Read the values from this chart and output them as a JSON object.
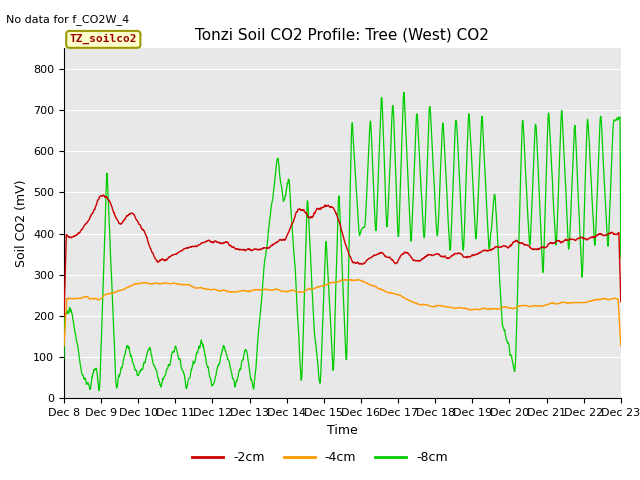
{
  "title": "Tonzi Soil CO2 Profile: Tree (West) CO2",
  "subtitle": "No data for f_CO2W_4",
  "ylabel": "Soil CO2 (mV)",
  "xlabel": "Time",
  "xlabels": [
    "Dec 8",
    "Dec 9",
    "Dec 10",
    "Dec 11",
    "Dec 12",
    "Dec 13",
    "Dec 14",
    "Dec 15",
    "Dec 16",
    "Dec 17",
    "Dec 18",
    "Dec 19",
    "Dec 20",
    "Dec 21",
    "Dec 22",
    "Dec 23"
  ],
  "ylim": [
    0,
    850
  ],
  "yticks": [
    0,
    100,
    200,
    300,
    400,
    500,
    600,
    700,
    800
  ],
  "legend_labels": [
    "-2cm",
    "-4cm",
    "-8cm"
  ],
  "line_colors": [
    "#cc0000",
    "#ff9900",
    "#00cc00"
  ],
  "box_label": "TZ_soilco2",
  "box_color": "#ffffcc",
  "box_edge_color": "#999900",
  "plot_bg_color": "#e8e8e8",
  "grid_color": "#ffffff",
  "title_fontsize": 11,
  "axis_fontsize": 9,
  "tick_fontsize": 8
}
